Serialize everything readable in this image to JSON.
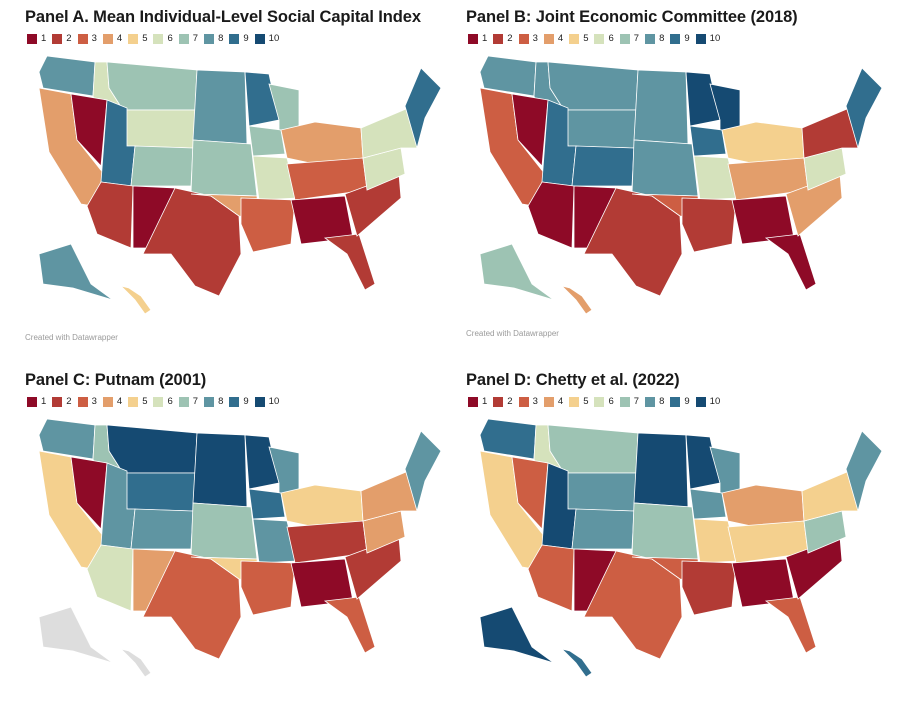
{
  "legend_labels": [
    "1",
    "2",
    "3",
    "4",
    "5",
    "6",
    "7",
    "8",
    "9",
    "10"
  ],
  "palette": [
    "#8e0a27",
    "#b23b35",
    "#cd5e43",
    "#e39e6b",
    "#f4d08e",
    "#d5e2bc",
    "#9dc3b3",
    "#5f95a2",
    "#316e8e",
    "#154a72"
  ],
  "credit": "Created with Datawrapper",
  "panels": [
    {
      "title": "Panel A. Mean Individual-Level Social Capital Index",
      "credit": true,
      "regions": {
        "northwest": 8,
        "idaho": 6,
        "montana": 7,
        "wyoming": 6,
        "dakotas": 8,
        "minnesota": 9,
        "wisconsin": 7,
        "california": 4,
        "nevada": 1,
        "utah": 9,
        "colorado": 7,
        "nebraska_kansas": 7,
        "iowa": 7,
        "southwest": 2,
        "new_mexico": 1,
        "texas": 2,
        "oklahoma": 4,
        "missouri": 6,
        "great_lakes": 4,
        "kentucky_tennessee": 3,
        "south_central": 3,
        "deep_south": 1,
        "florida": 2,
        "carolinas": 2,
        "virginia": 6,
        "mid_atlantic": 6,
        "new_england": 9,
        "alaska": 8,
        "hawaii": 5
      }
    },
    {
      "title": "Panel B: Joint Economic Committee (2018)",
      "credit": true,
      "regions": {
        "northwest": 8,
        "idaho": 8,
        "montana": 8,
        "wyoming": 8,
        "dakotas": 8,
        "minnesota": 10,
        "wisconsin": 10,
        "california": 3,
        "nevada": 1,
        "utah": 9,
        "colorado": 9,
        "nebraska_kansas": 8,
        "iowa": 9,
        "southwest": 1,
        "new_mexico": 1,
        "texas": 2,
        "oklahoma": 3,
        "missouri": 6,
        "great_lakes": 5,
        "kentucky_tennessee": 4,
        "south_central": 2,
        "deep_south": 1,
        "florida": 1,
        "carolinas": 4,
        "virginia": 6,
        "mid_atlantic": 2,
        "new_england": 9,
        "alaska": 7,
        "hawaii": 4
      }
    },
    {
      "title": "Panel C: Putnam (2001)",
      "credit": false,
      "regions": {
        "northwest": 8,
        "idaho": 7,
        "montana": 10,
        "wyoming": 9,
        "dakotas": 10,
        "minnesota": 10,
        "wisconsin": 8,
        "california": 5,
        "nevada": 1,
        "utah": 8,
        "colorado": 8,
        "nebraska_kansas": 7,
        "iowa": 9,
        "southwest": 6,
        "new_mexico": 4,
        "texas": 3,
        "oklahoma": 5,
        "missouri": 8,
        "great_lakes": 5,
        "kentucky_tennessee": 2,
        "south_central": 3,
        "deep_south": 1,
        "florida": 3,
        "carolinas": 2,
        "virginia": 4,
        "mid_atlantic": 4,
        "new_england": 8,
        "alaska": null,
        "hawaii": null
      }
    },
    {
      "title": "Panel D: Chetty et al. (2022)",
      "credit": false,
      "regions": {
        "northwest": 9,
        "idaho": 6,
        "montana": 7,
        "wyoming": 8,
        "dakotas": 10,
        "minnesota": 10,
        "wisconsin": 8,
        "california": 5,
        "nevada": 3,
        "utah": 10,
        "colorado": 8,
        "nebraska_kansas": 7,
        "iowa": 8,
        "southwest": 3,
        "new_mexico": 1,
        "texas": 3,
        "oklahoma": 3,
        "missouri": 5,
        "great_lakes": 4,
        "kentucky_tennessee": 5,
        "south_central": 2,
        "deep_south": 1,
        "florida": 3,
        "carolinas": 1,
        "virginia": 7,
        "mid_atlantic": 5,
        "new_england": 8,
        "alaska": 10,
        "hawaii": 9
      }
    }
  ]
}
